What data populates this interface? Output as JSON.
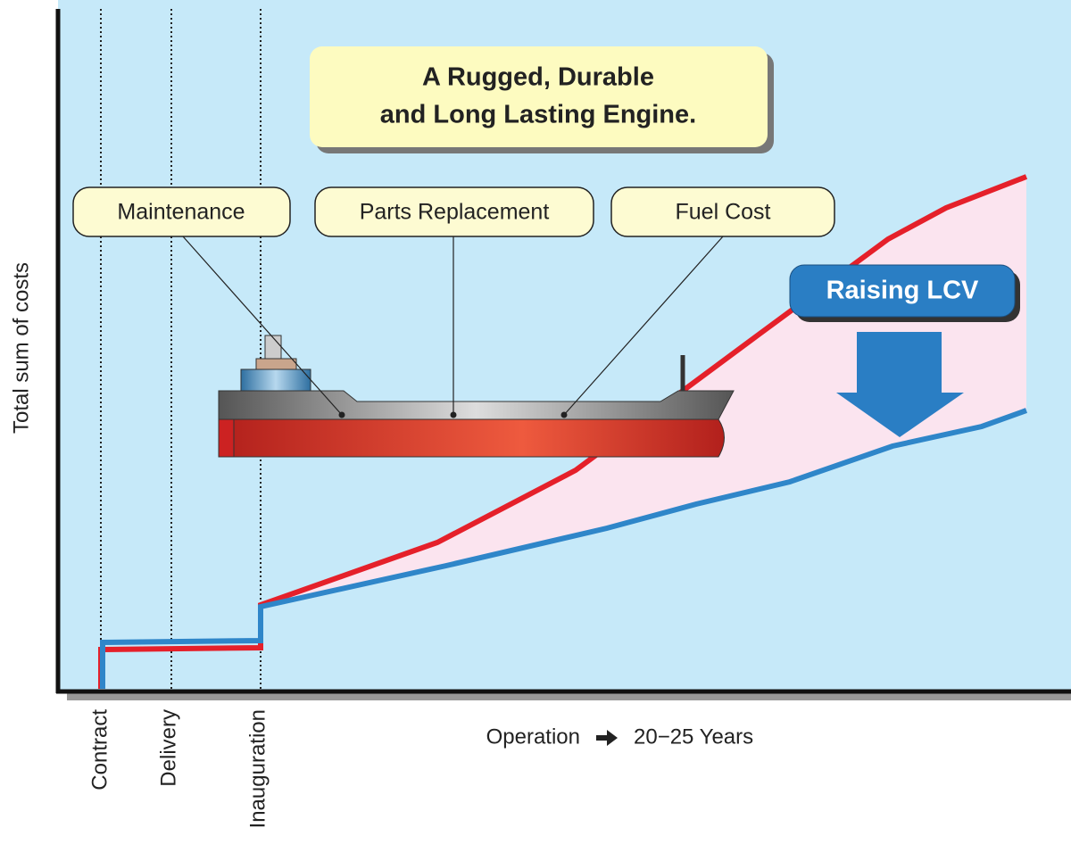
{
  "y_axis_label": "Total sum of costs",
  "title_lines": [
    "A Rugged, Durable",
    "and Long Lasting Engine."
  ],
  "callouts": [
    "Maintenance",
    "Parts Replacement",
    "Fuel Cost"
  ],
  "badge": "Raising LCV",
  "milestones": [
    "Contract",
    "Delivery",
    "Inauguration"
  ],
  "x_axis_label": {
    "left": "Operation",
    "right": "20−25 Years"
  }
}
